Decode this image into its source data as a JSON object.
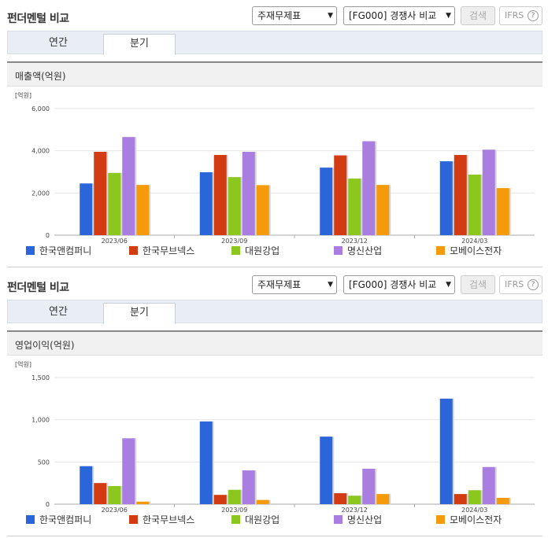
{
  "panels": [
    {
      "title": "펀더멘털 비교",
      "select_statement": "주재무제표",
      "select_compare": "[FG000] 경쟁사 비교",
      "search_label": "검색",
      "ifrs_label": "IFRS",
      "ifrs_help": "?",
      "tabs": [
        "연간",
        "분기"
      ],
      "active_tab": "분기",
      "chart_title": "매출액(억원)",
      "chart_data": {
        "type": "bar",
        "unit": "[억원]",
        "categories": [
          "2023/06",
          "2023/09",
          "2023/12",
          "2024/03"
        ],
        "ylim": [
          0,
          6000
        ],
        "yticks": [
          "0",
          "2,000",
          "4,000",
          "6,000"
        ],
        "ytick_values": [
          0,
          2000,
          4000,
          6000
        ],
        "series": [
          {
            "name": "한국앤컴퍼니",
            "color": "#2a66d9",
            "values": [
              2450,
              2980,
              3200,
              3500
            ]
          },
          {
            "name": "한국무브넥스",
            "color": "#d33b12",
            "values": [
              3950,
              3800,
              3780,
              3800
            ]
          },
          {
            "name": "대원강업",
            "color": "#8cc71e",
            "values": [
              2950,
              2750,
              2680,
              2870
            ]
          },
          {
            "name": "명신산업",
            "color": "#a97ee0",
            "values": [
              4650,
              3950,
              4450,
              4050
            ]
          },
          {
            "name": "모베이스전자",
            "color": "#f59a0a",
            "values": [
              2380,
              2370,
              2380,
              2230
            ]
          }
        ]
      }
    },
    {
      "title": "펀더멘털 비교",
      "select_statement": "주재무제표",
      "select_compare": "[FG000] 경쟁사 비교",
      "search_label": "검색",
      "ifrs_label": "IFRS",
      "ifrs_help": "?",
      "tabs": [
        "연간",
        "분기"
      ],
      "active_tab": "분기",
      "chart_title": "영업이익(억원)",
      "chart_data": {
        "type": "bar",
        "unit": "[억원]",
        "categories": [
          "2023/06",
          "2023/09",
          "2023/12",
          "2024/03"
        ],
        "ylim": [
          0,
          1500
        ],
        "yticks": [
          "0",
          "500",
          "1,000",
          "1,500"
        ],
        "ytick_values": [
          0,
          500,
          1000,
          1500
        ],
        "series": [
          {
            "name": "한국앤컴퍼니",
            "color": "#2a66d9",
            "values": [
              450,
              980,
              800,
              1250
            ]
          },
          {
            "name": "한국무브넥스",
            "color": "#d33b12",
            "values": [
              250,
              110,
              130,
              120
            ]
          },
          {
            "name": "대원강업",
            "color": "#8cc71e",
            "values": [
              215,
              170,
              100,
              165
            ]
          },
          {
            "name": "명신산업",
            "color": "#a97ee0",
            "values": [
              780,
              400,
              420,
              440
            ]
          },
          {
            "name": "모베이스전자",
            "color": "#f59a0a",
            "values": [
              30,
              50,
              120,
              75
            ]
          }
        ]
      }
    }
  ]
}
